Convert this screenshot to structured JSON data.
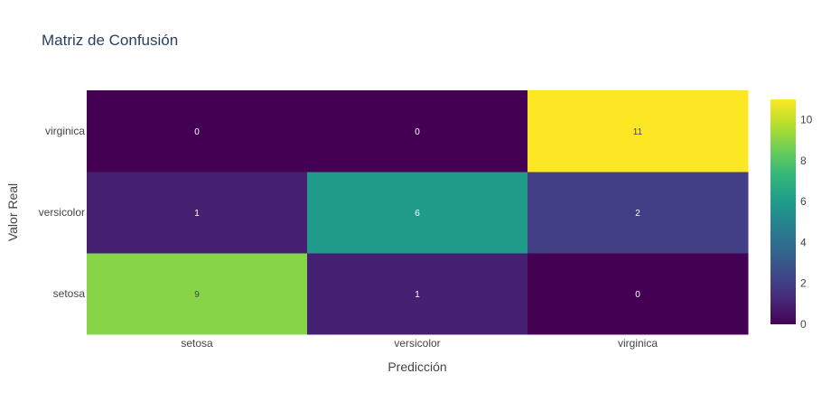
{
  "chart_data": {
    "type": "heatmap",
    "title": "Matriz de Confusión",
    "xlabel": "Predicción",
    "ylabel": "Valor Real",
    "x_categories": [
      "setosa",
      "versicolor",
      "virginica"
    ],
    "y_categories": [
      "setosa",
      "versicolor",
      "virginica"
    ],
    "z": [
      [
        9,
        1,
        0
      ],
      [
        1,
        6,
        2
      ],
      [
        0,
        0,
        11
      ]
    ],
    "zrange": [
      0,
      11
    ],
    "colorscale": "Viridis",
    "colorbar_ticks": [
      "0",
      "2",
      "4",
      "6",
      "8",
      "10"
    ],
    "grid": false
  },
  "colors": {
    "text_dark": "#444444",
    "title": "#2a3f5f",
    "cell_text_light": "#ffffff",
    "cell_text_dark": "#444444"
  }
}
